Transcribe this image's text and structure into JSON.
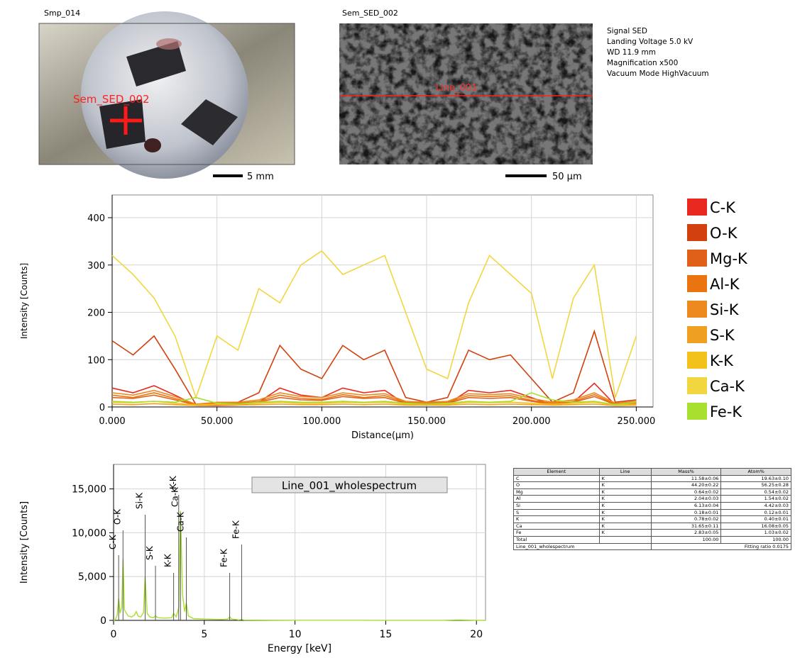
{
  "photos": {
    "left": {
      "title": "Smp_014",
      "marker": "Sem_SED_002",
      "scale": "5 mm"
    },
    "right": {
      "title": "Sem_SED_002",
      "line": "Line_001",
      "scale": "50 µm",
      "info": [
        "Signal SED",
        "Landing Voltage 5.0 kV",
        "WD 11.9 mm",
        "Magnification x500",
        "Vacuum Mode HighVacuum"
      ]
    }
  },
  "chart_data": [
    {
      "type": "line",
      "x_label": "Distance(µm)",
      "y_label": "Intensity [Counts]",
      "x": [
        0,
        10,
        20,
        30,
        40,
        50,
        60,
        70,
        80,
        90,
        100,
        110,
        120,
        130,
        140,
        150,
        160,
        170,
        180,
        190,
        200,
        210,
        220,
        230,
        240,
        250
      ],
      "xlim": [
        0,
        258
      ],
      "ylim": [
        0,
        448
      ],
      "xticks": [
        {
          "value": 0,
          "label": "0.000"
        },
        {
          "value": 50,
          "label": "50.000"
        },
        {
          "value": 100,
          "label": "100.000"
        },
        {
          "value": 150,
          "label": "150.000"
        },
        {
          "value": 200,
          "label": "200.000"
        },
        {
          "value": 250,
          "label": "250.000"
        }
      ],
      "yticks": [
        0,
        100,
        200,
        300,
        400
      ],
      "grid": true,
      "series": [
        {
          "name": "C-K",
          "color": "#e8281e",
          "values": [
            40,
            30,
            45,
            25,
            3,
            3,
            4,
            10,
            40,
            25,
            20,
            40,
            30,
            35,
            6,
            4,
            6,
            35,
            30,
            35,
            20,
            4,
            10,
            50,
            4,
            6
          ]
        },
        {
          "name": "O-K",
          "color": "#d2400e",
          "values": [
            140,
            110,
            150,
            80,
            5,
            5,
            10,
            30,
            130,
            80,
            60,
            130,
            100,
            120,
            20,
            10,
            20,
            120,
            100,
            110,
            60,
            10,
            30,
            160,
            10,
            15
          ]
        },
        {
          "name": "Mg-K",
          "color": "#e0601a",
          "values": [
            20,
            18,
            25,
            15,
            4,
            6,
            6,
            10,
            20,
            15,
            14,
            22,
            18,
            20,
            8,
            6,
            8,
            20,
            18,
            20,
            12,
            6,
            10,
            22,
            5,
            8
          ]
        },
        {
          "name": "Al-K",
          "color": "#ea7410",
          "values": [
            25,
            20,
            30,
            18,
            5,
            8,
            8,
            12,
            25,
            18,
            16,
            26,
            20,
            24,
            10,
            8,
            10,
            24,
            22,
            24,
            14,
            8,
            12,
            26,
            6,
            10
          ]
        },
        {
          "name": "Si-K",
          "color": "#ec8a20",
          "values": [
            30,
            25,
            35,
            22,
            6,
            10,
            10,
            15,
            30,
            22,
            20,
            30,
            25,
            28,
            12,
            10,
            12,
            28,
            26,
            28,
            18,
            10,
            15,
            30,
            8,
            12
          ]
        },
        {
          "name": "S-K",
          "color": "#f0a020",
          "values": [
            6,
            5,
            7,
            5,
            3,
            4,
            4,
            5,
            6,
            5,
            5,
            6,
            5,
            6,
            4,
            4,
            4,
            6,
            5,
            6,
            5,
            4,
            5,
            6,
            3,
            4
          ]
        },
        {
          "name": "K-K",
          "color": "#f2c21a",
          "values": [
            10,
            9,
            12,
            8,
            4,
            6,
            6,
            8,
            10,
            8,
            8,
            10,
            9,
            10,
            6,
            6,
            6,
            10,
            9,
            10,
            8,
            6,
            8,
            10,
            4,
            6
          ]
        },
        {
          "name": "Ca-K",
          "color": "#f2d640",
          "values": [
            320,
            280,
            230,
            150,
            20,
            150,
            120,
            250,
            220,
            300,
            330,
            280,
            300,
            320,
            200,
            80,
            60,
            220,
            320,
            280,
            240,
            60,
            230,
            300,
            20,
            150
          ]
        },
        {
          "name": "Fe-K",
          "color": "#a8e030",
          "values": [
            12,
            10,
            12,
            10,
            20,
            8,
            6,
            10,
            12,
            10,
            10,
            12,
            10,
            12,
            8,
            6,
            8,
            12,
            10,
            12,
            30,
            15,
            10,
            12,
            5,
            10
          ]
        }
      ],
      "legend": "right"
    },
    {
      "type": "spectrum",
      "x_label": "Energy [keV]",
      "y_label": "Intensity [Counts]",
      "xlim": [
        0,
        20.5
      ],
      "ylim": [
        0,
        17800
      ],
      "xticks": [
        0,
        5,
        10,
        15,
        20
      ],
      "yticks": [
        0,
        {
          "value": 5000,
          "label": "5,000"
        },
        {
          "value": 10000,
          "label": "10,000"
        },
        {
          "value": 15000,
          "label": "15,000"
        }
      ],
      "grid": true,
      "x": [
        0,
        0.1,
        0.2,
        0.28,
        0.36,
        0.45,
        0.52,
        0.6,
        0.8,
        1.0,
        1.15,
        1.25,
        1.35,
        1.5,
        1.65,
        1.74,
        1.85,
        2.0,
        2.2,
        2.31,
        2.45,
        2.8,
        3.2,
        3.31,
        3.45,
        3.6,
        3.69,
        3.8,
        3.92,
        4.01,
        4.12,
        4.4,
        5,
        6.0,
        6.3,
        6.4,
        6.5,
        6.9,
        7.06,
        7.2,
        8,
        10,
        12,
        15,
        18,
        19,
        19.4,
        20,
        20.5
      ],
      "series": [
        {
          "name": "Line_001_wholespectrum",
          "color": "#a8e030",
          "values": [
            0,
            100,
            600,
            2500,
            800,
            1500,
            7000,
            1200,
            500,
            400,
            600,
            1000,
            500,
            400,
            900,
            5000,
            800,
            400,
            300,
            500,
            300,
            250,
            300,
            800,
            400,
            1500,
            12500,
            3000,
            1000,
            2000,
            500,
            200,
            150,
            100,
            150,
            400,
            150,
            60,
            100,
            50,
            30,
            20,
            15,
            10,
            10,
            60,
            40,
            20,
            0
          ]
        }
      ],
      "peak_labels": [
        {
          "x": 0.28,
          "label": "C-K"
        },
        {
          "x": 0.52,
          "label": "O-K"
        },
        {
          "x": 1.74,
          "label": "Si-K"
        },
        {
          "x": 2.31,
          "label": "S-K"
        },
        {
          "x": 3.31,
          "label": "K-K"
        },
        {
          "x": 3.69,
          "label": "Ca-K"
        },
        {
          "x": 3.59,
          "label": "K-K"
        },
        {
          "x": 4.01,
          "label": "Ca-K"
        },
        {
          "x": 6.4,
          "label": "Fe-K"
        },
        {
          "x": 7.06,
          "label": "Fe-K"
        }
      ]
    }
  ],
  "table": {
    "header": [
      "Element",
      "Line",
      "Mass%",
      "Atom%"
    ],
    "rows": [
      [
        "C",
        "K",
        "11.58±0.06",
        "19.63±0.10"
      ],
      [
        "O",
        "K",
        "44.20±0.22",
        "56.25±0.28"
      ],
      [
        "Mg",
        "K",
        "0.64±0.02",
        "0.54±0.02"
      ],
      [
        "Al",
        "K",
        "2.04±0.03",
        "1.54±0.02"
      ],
      [
        "Si",
        "K",
        "6.13±0.04",
        "4.42±0.03"
      ],
      [
        "S",
        "K",
        "0.18±0.01",
        "0.12±0.01"
      ],
      [
        "K",
        "K",
        "0.78±0.02",
        "0.40±0.01"
      ],
      [
        "Ca",
        "K",
        "31.65±0.11",
        "16.08±0.05"
      ],
      [
        "Fe",
        "K",
        "2.83±0.05",
        "1.03±0.02"
      ]
    ],
    "total": {
      "label": "Total",
      "mass": "100.00",
      "atom": "100.00"
    },
    "footer": {
      "name": "Line_001_wholespectrum",
      "ratio": "Fitting ratio 0.0175"
    }
  }
}
